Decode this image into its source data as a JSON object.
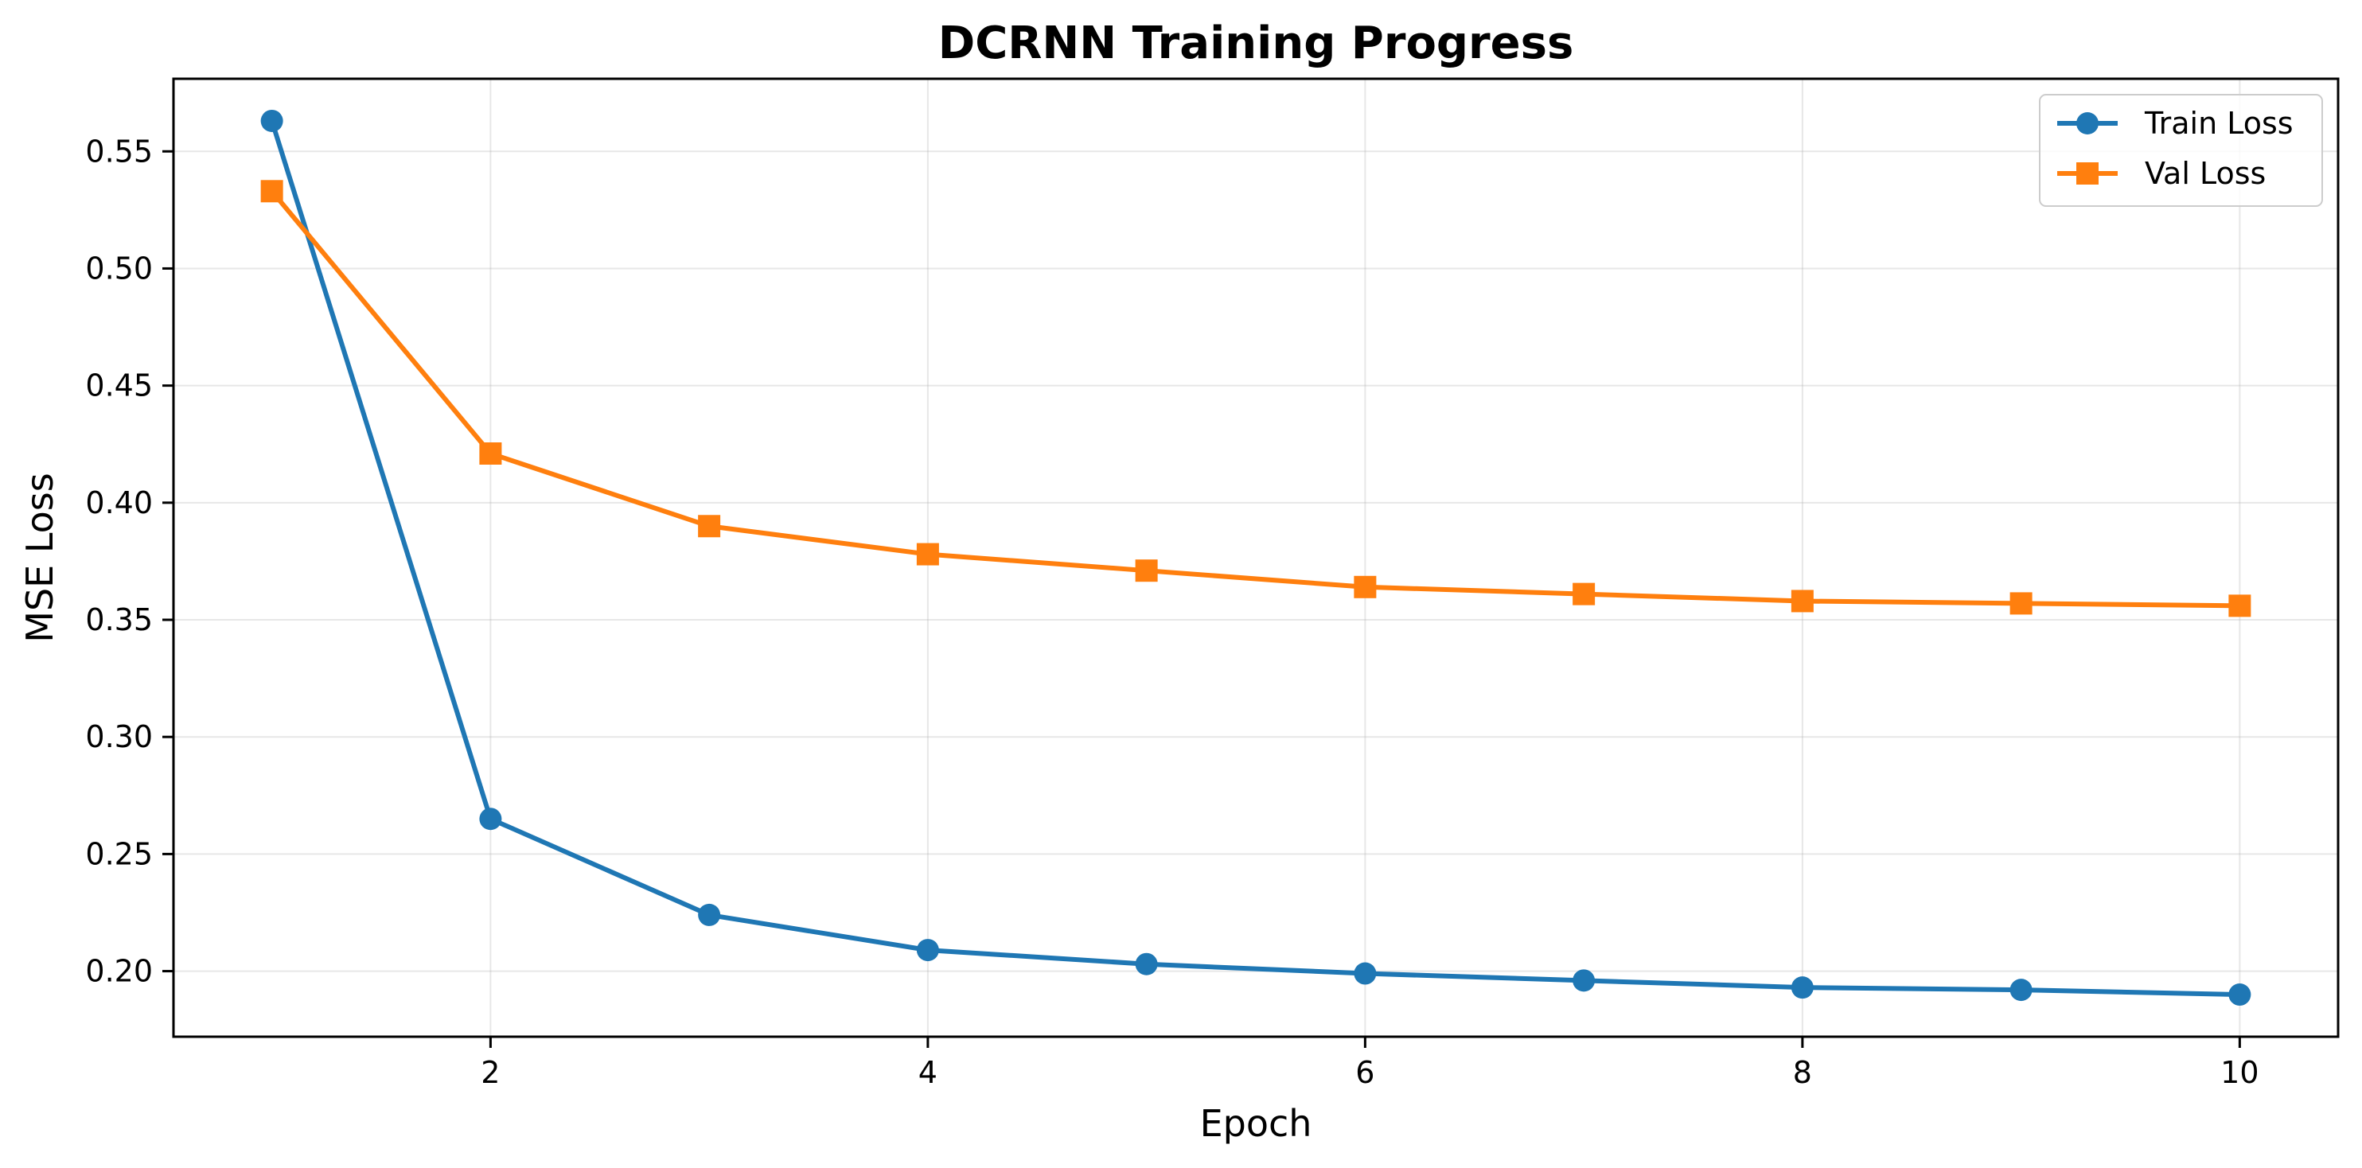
{
  "chart_data": {
    "type": "line",
    "title": "DCRNN Training Progress",
    "xlabel": "Epoch",
    "ylabel": "MSE Loss",
    "xlim": [
      0.55,
      10.45
    ],
    "ylim": [
      0.172,
      0.581
    ],
    "xticks": [
      2,
      4,
      6,
      8,
      10
    ],
    "yticks": [
      0.2,
      0.25,
      0.3,
      0.35,
      0.4,
      0.45,
      0.5,
      0.55
    ],
    "ytick_labels": [
      "0.20",
      "0.25",
      "0.30",
      "0.35",
      "0.40",
      "0.45",
      "0.50",
      "0.55"
    ],
    "grid": true,
    "legend_position": "top-right",
    "x": [
      1,
      2,
      3,
      4,
      5,
      6,
      7,
      8,
      9,
      10
    ],
    "series": [
      {
        "name": "Train Loss",
        "color": "#1f77b4",
        "marker": "circle",
        "values": [
          0.563,
          0.265,
          0.224,
          0.209,
          0.203,
          0.199,
          0.196,
          0.193,
          0.192,
          0.19
        ]
      },
      {
        "name": "Val Loss",
        "color": "#ff7f0e",
        "marker": "square",
        "values": [
          0.533,
          0.421,
          0.39,
          0.378,
          0.371,
          0.364,
          0.361,
          0.358,
          0.357,
          0.356
        ]
      }
    ]
  }
}
